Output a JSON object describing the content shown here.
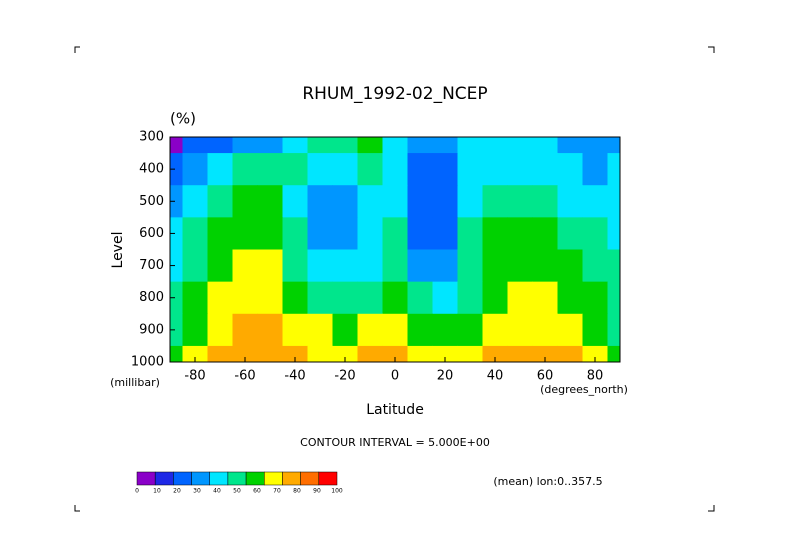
{
  "chart_data": {
    "type": "contour",
    "title": "RHUM_1992-02_NCEP",
    "units": "(%)",
    "y_label": "Level",
    "y_unit": "(millibar)",
    "x_label": "Latitude",
    "x_unit": "(degrees_north)",
    "note": "CONTOUR INTERVAL = 5.000E+00",
    "footer": "(mean) lon:0..357.5",
    "x": [
      -90,
      -80,
      -70,
      -60,
      -50,
      -40,
      -30,
      -20,
      -10,
      0,
      10,
      20,
      30,
      40,
      50,
      60,
      70,
      80,
      90
    ],
    "levels": [
      300,
      400,
      500,
      600,
      700,
      800,
      900,
      1000
    ],
    "values": [
      [
        5,
        20,
        25,
        30,
        35,
        45,
        55,
        55,
        60,
        45,
        30,
        30,
        45,
        45,
        45,
        40,
        35,
        30,
        35
      ],
      [
        25,
        35,
        45,
        50,
        55,
        55,
        40,
        40,
        50,
        40,
        20,
        20,
        40,
        45,
        45,
        40,
        40,
        35,
        40
      ],
      [
        35,
        45,
        55,
        60,
        60,
        45,
        30,
        35,
        45,
        45,
        20,
        20,
        40,
        55,
        55,
        50,
        45,
        40,
        40
      ],
      [
        40,
        50,
        60,
        65,
        65,
        50,
        35,
        35,
        45,
        50,
        20,
        20,
        50,
        60,
        60,
        60,
        55,
        50,
        45
      ],
      [
        45,
        55,
        65,
        70,
        70,
        55,
        45,
        40,
        45,
        55,
        30,
        30,
        55,
        60,
        65,
        65,
        60,
        55,
        50
      ],
      [
        50,
        60,
        70,
        75,
        75,
        65,
        55,
        50,
        55,
        60,
        55,
        40,
        55,
        65,
        70,
        70,
        65,
        60,
        55
      ],
      [
        55,
        65,
        75,
        80,
        80,
        75,
        70,
        65,
        70,
        70,
        65,
        60,
        65,
        70,
        75,
        75,
        70,
        65,
        55
      ],
      [
        60,
        70,
        80,
        85,
        85,
        80,
        75,
        70,
        80,
        80,
        75,
        70,
        75,
        80,
        85,
        85,
        80,
        70,
        60
      ]
    ],
    "xlim": [
      -90,
      90
    ],
    "xticks": [
      -80,
      -60,
      -40,
      -20,
      0,
      20,
      40,
      60,
      80
    ],
    "ylim": [
      1000,
      300
    ],
    "yticks": [
      300,
      400,
      500,
      600,
      700,
      800,
      900,
      1000
    ],
    "colorbar": {
      "ticks": [
        0,
        10,
        20,
        30,
        40,
        50,
        60,
        70,
        80,
        90,
        100
      ],
      "colors": [
        "#8a00c8",
        "#1e28e6",
        "#0064ff",
        "#0096ff",
        "#00e6ff",
        "#00e68c",
        "#00d200",
        "#ffff00",
        "#ffaa00",
        "#ff6e00",
        "#ff0000"
      ]
    }
  }
}
